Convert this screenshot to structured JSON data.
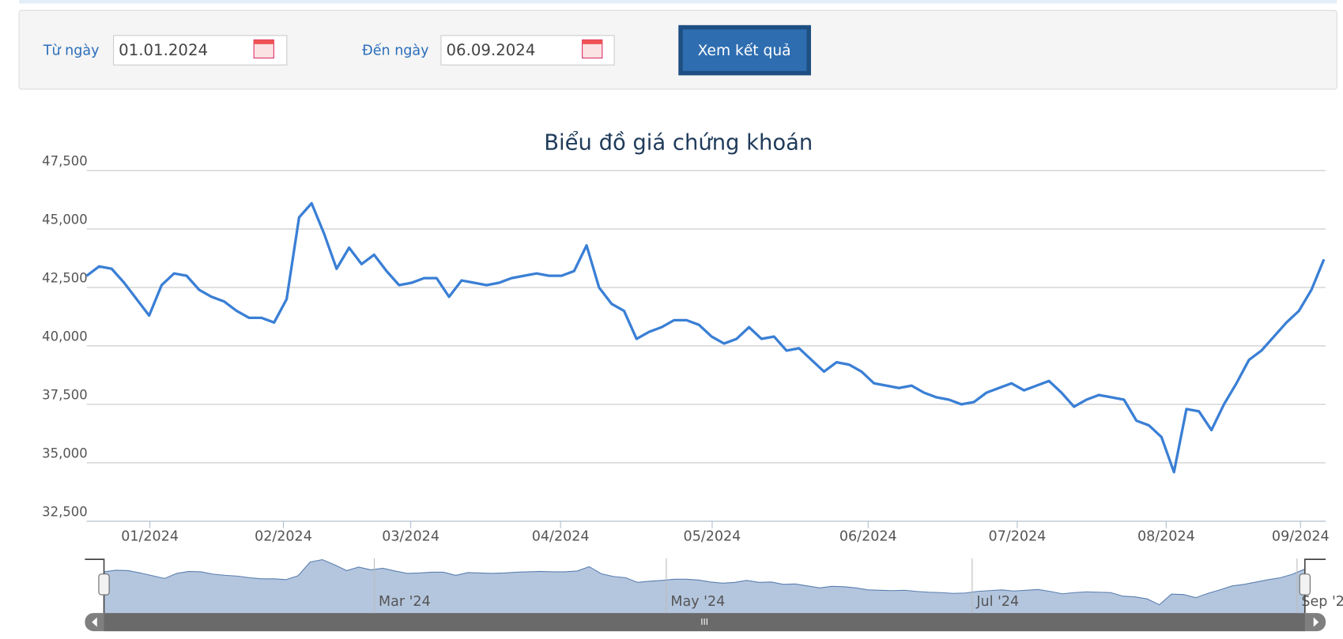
{
  "form": {
    "from_label": "Từ ngày",
    "from_value": "01.01.2024",
    "to_label": "Đến ngày",
    "to_value": "06.09.2024",
    "button": "Xem kết quả"
  },
  "chart_data": {
    "type": "line",
    "title": "Biểu đồ giá chứng khoán",
    "series": [
      {
        "color": "#3a7fd5",
        "values": [
          43000,
          43400,
          43300,
          42700,
          42000,
          41300,
          42600,
          43100,
          43000,
          42400,
          42100,
          41900,
          41500,
          41200,
          41200,
          41000,
          42000,
          45500,
          46100,
          44800,
          43300,
          44200,
          43500,
          43900,
          43200,
          42600,
          42700,
          42900,
          42900,
          42100,
          42800,
          42700,
          42600,
          42700,
          42900,
          43000,
          43100,
          43000,
          43000,
          43200,
          44300,
          42500,
          41800,
          41500,
          40300,
          40600,
          40800,
          41100,
          41100,
          40900,
          40400,
          40100,
          40300,
          40800,
          40300,
          40400,
          39800,
          39900,
          39400,
          38900,
          39300,
          39200,
          38900,
          38400,
          38300,
          38200,
          38300,
          38000,
          37800,
          37700,
          37500,
          37600,
          38000,
          38200,
          38400,
          38100,
          38300,
          38500,
          38000,
          37400,
          37700,
          37900,
          37800,
          37700,
          36800,
          36600,
          36100,
          34600,
          37300,
          37200,
          36400,
          37500,
          38400,
          39400,
          39800,
          40400,
          41000,
          41500,
          42400,
          43700
        ]
      }
    ],
    "ylim": [
      32500,
      47500
    ],
    "yticks": [
      {
        "value": 32500,
        "label": "32,500"
      },
      {
        "value": 35000,
        "label": "35,000"
      },
      {
        "value": 37500,
        "label": "37,500"
      },
      {
        "value": 40000,
        "label": "40,000"
      },
      {
        "value": 42500,
        "label": "42,500"
      },
      {
        "value": 45000,
        "label": "45,000"
      },
      {
        "value": 47500,
        "label": "47,500"
      }
    ],
    "xlim": [
      0,
      99
    ],
    "xticks": [
      {
        "value": 5.06,
        "label": "01/2024"
      },
      {
        "value": 15.74,
        "label": "02/2024"
      },
      {
        "value": 25.93,
        "label": "03/2024"
      },
      {
        "value": 37.92,
        "label": "04/2024"
      },
      {
        "value": 50.05,
        "label": "05/2024"
      },
      {
        "value": 62.53,
        "label": "06/2024"
      },
      {
        "value": 74.46,
        "label": "07/2024"
      },
      {
        "value": 86.38,
        "label": "08/2024"
      },
      {
        "value": 97.13,
        "label": "09/2024"
      }
    ],
    "grid": true,
    "navigator_labels": [
      "Mar '24",
      "May '24",
      "Jul '24",
      "Sep '2"
    ]
  }
}
